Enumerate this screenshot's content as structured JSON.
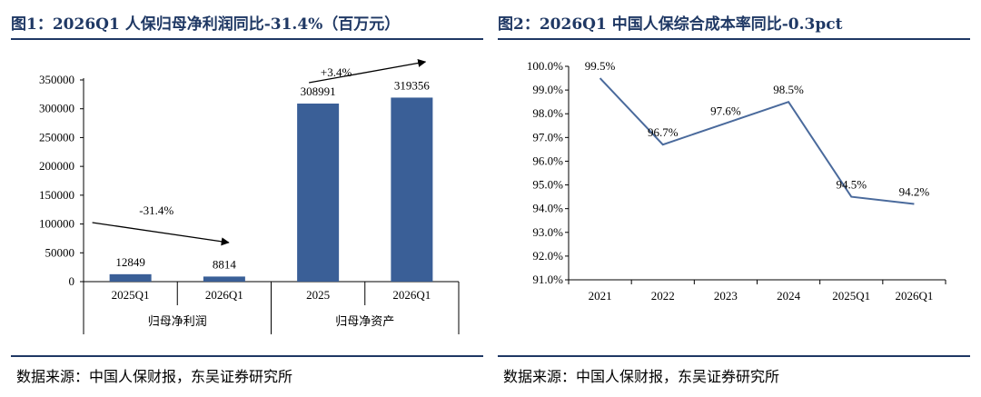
{
  "colors": {
    "accent": "#1F3864",
    "bar": "#3A5F97",
    "line": "#4A6A9C"
  },
  "left": {
    "title": "图1：2026Q1 人保归母净利润同比-31.4%（百万元）",
    "source": "数据来源：中国人保财报，东吴证券研究所"
  },
  "right": {
    "title": "图2：2026Q1 中国人保综合成本率同比-0.3pct",
    "source": "数据来源：中国人保财报，东吴证券研究所"
  },
  "chart_data": [
    {
      "type": "bar",
      "categories": [
        "2025Q1",
        "2026Q1",
        "2025",
        "2026Q1"
      ],
      "groups": [
        {
          "label": "归母净利润",
          "categories": [
            "2025Q1",
            "2026Q1"
          ]
        },
        {
          "label": "归母净资产",
          "categories": [
            "2025",
            "2026Q1"
          ]
        }
      ],
      "values": [
        12849,
        8814,
        308991,
        319356
      ],
      "data_labels": [
        "12849",
        "8814",
        "308991",
        "319356"
      ],
      "yticks": [
        "0",
        "50000",
        "100000",
        "150000",
        "200000",
        "250000",
        "300000",
        "350000"
      ],
      "ylim": [
        0,
        350000
      ],
      "annotations": [
        {
          "text": "-31.4%",
          "from": 0,
          "to": 1
        },
        {
          "text": "+3.4%",
          "from": 2,
          "to": 3
        }
      ],
      "grid": false,
      "legend": "none"
    },
    {
      "type": "line",
      "x": [
        "2021",
        "2022",
        "2023",
        "2024",
        "2025Q1",
        "2026Q1"
      ],
      "values": [
        99.5,
        96.7,
        97.6,
        98.5,
        94.5,
        94.2
      ],
      "data_labels": [
        "99.5%",
        "96.7%",
        "97.6%",
        "98.5%",
        "94.5%",
        "94.2%"
      ],
      "yticks": [
        "91.0%",
        "92.0%",
        "93.0%",
        "94.0%",
        "95.0%",
        "96.0%",
        "97.0%",
        "98.0%",
        "99.0%",
        "100.0%"
      ],
      "ylim": [
        91,
        100
      ],
      "grid": false,
      "legend": "none"
    }
  ]
}
